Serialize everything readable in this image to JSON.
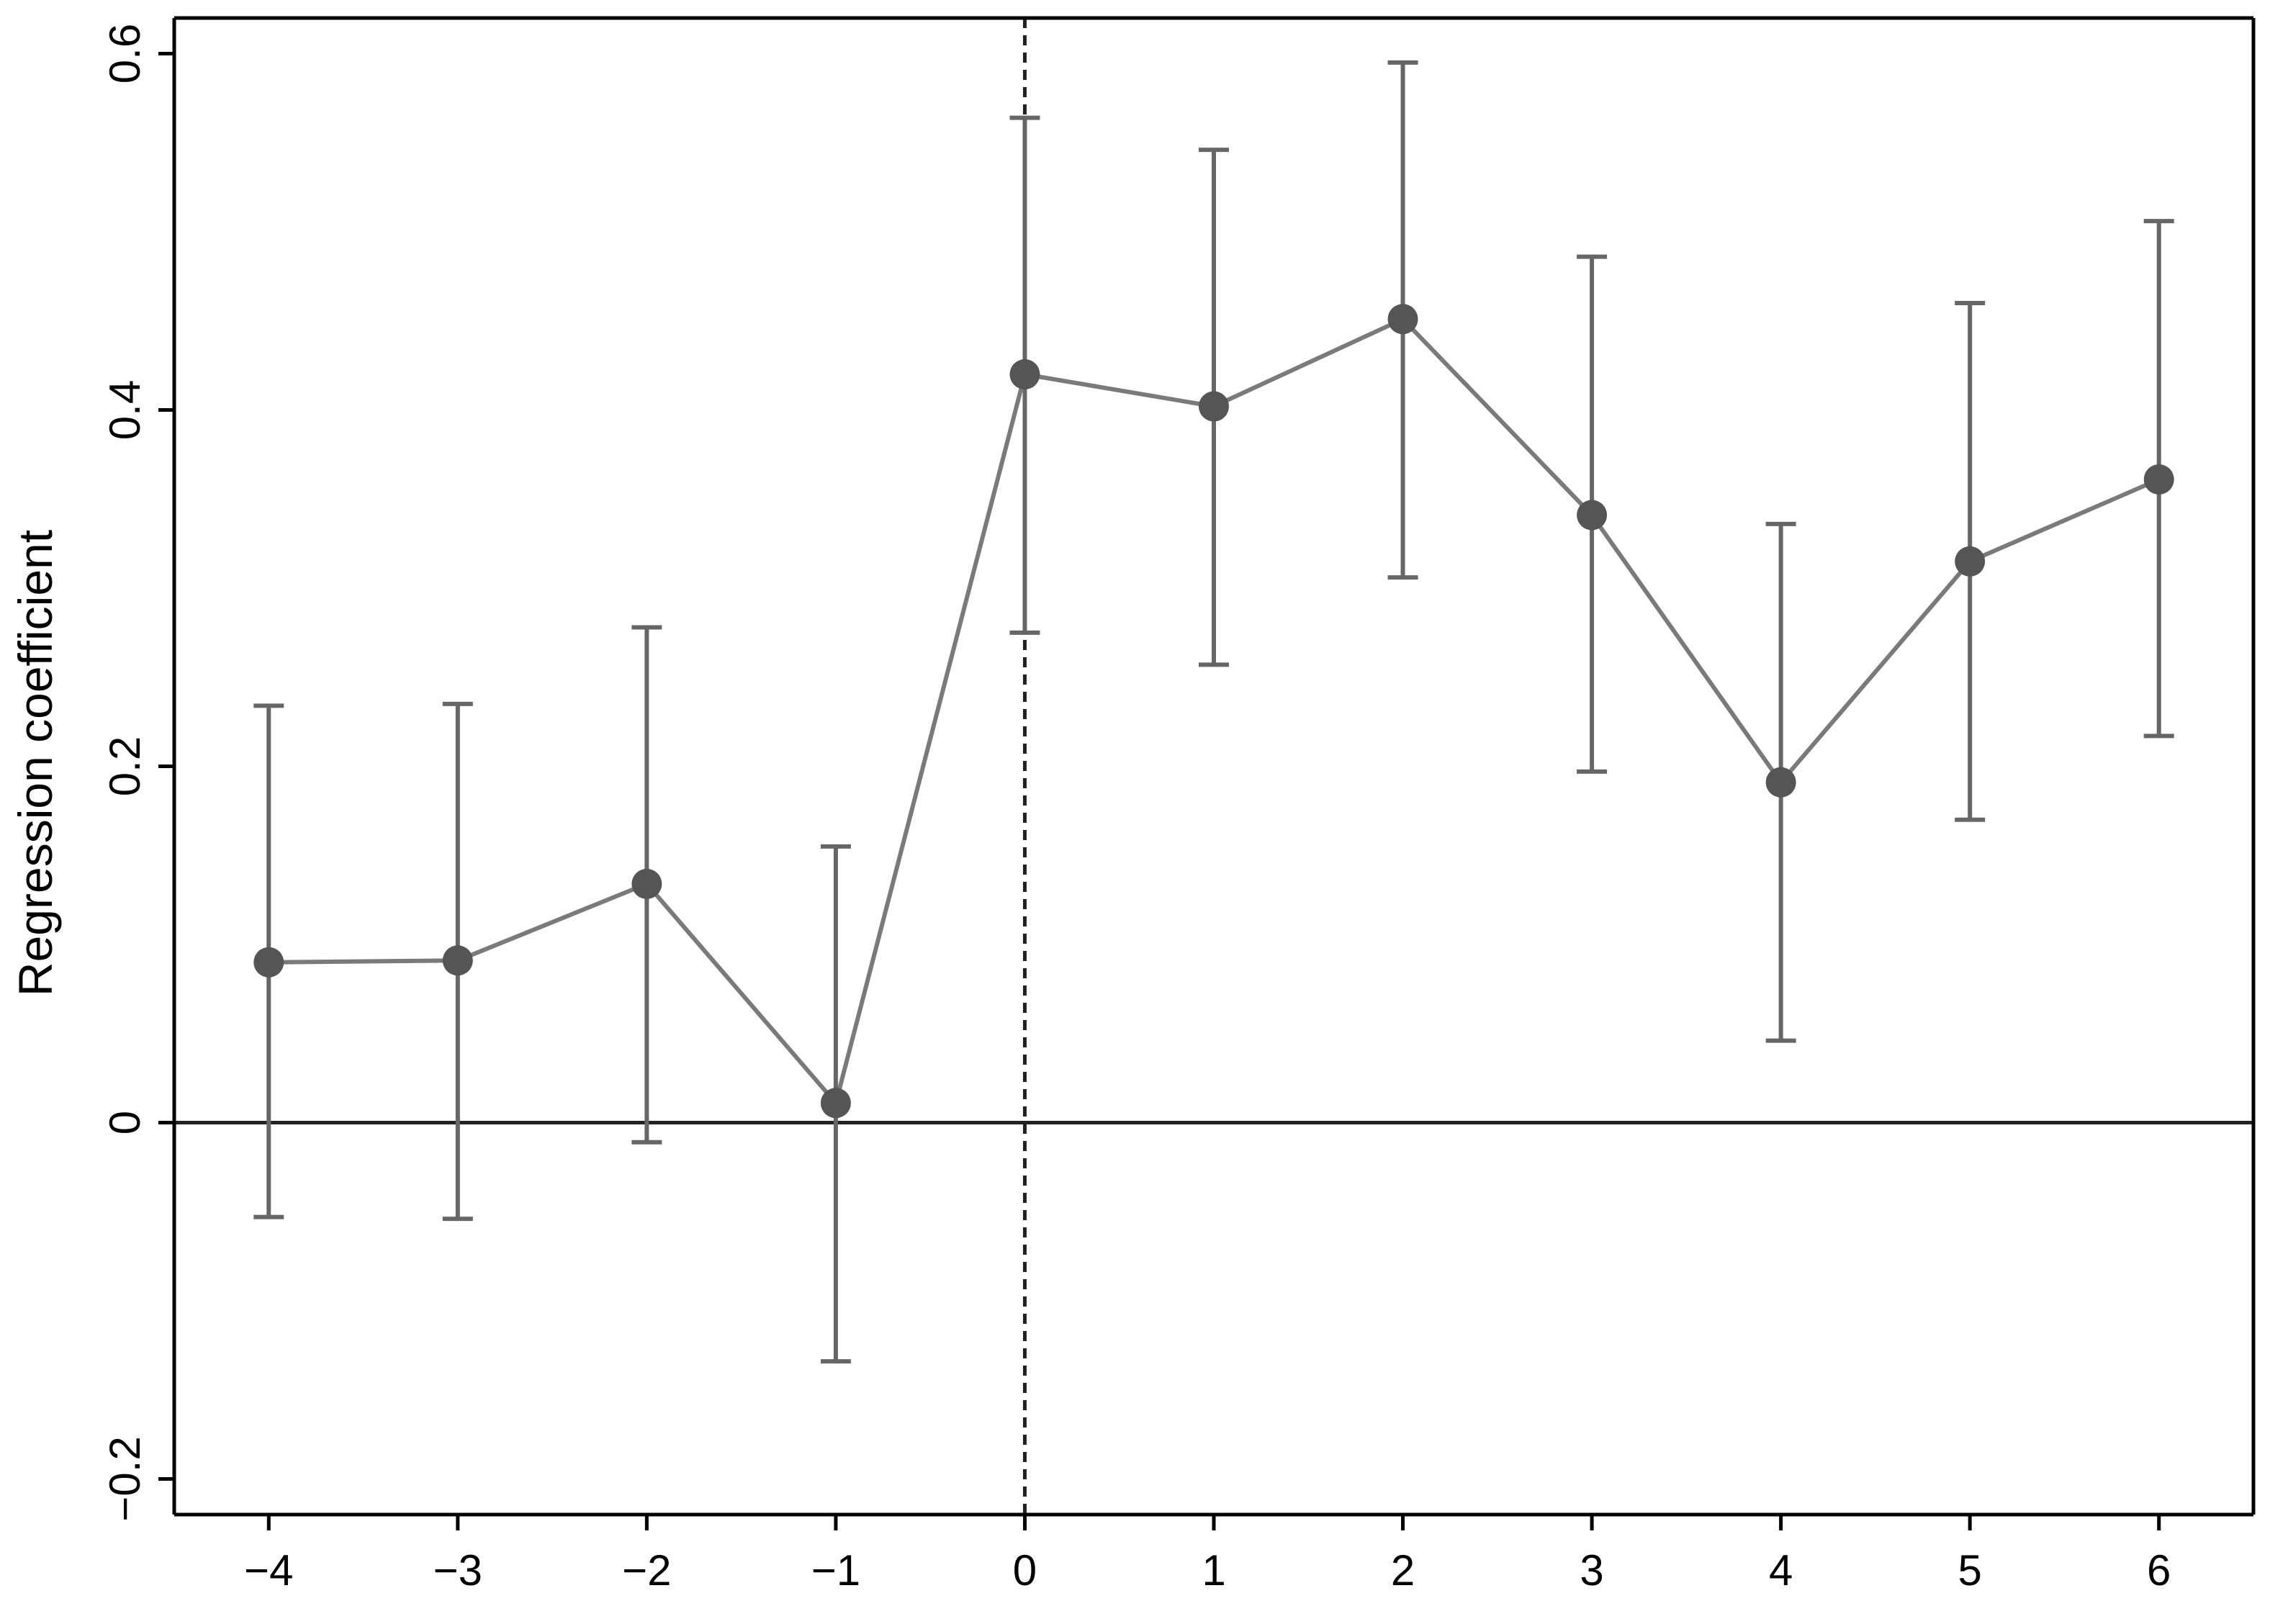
{
  "chart_data": {
    "type": "scatter",
    "title": "",
    "xlabel": "",
    "ylabel": "Regression coefficient",
    "x": [
      -4,
      -3,
      -2,
      -1,
      0,
      1,
      2,
      3,
      4,
      5,
      6
    ],
    "x_tick_labels": [
      "−4",
      "−3",
      "−2",
      "−1",
      "0",
      "1",
      "2",
      "3",
      "4",
      "5",
      "6"
    ],
    "y_ticks": [
      -0.2,
      0,
      0.2,
      0.4,
      0.6
    ],
    "y_tick_labels": [
      "−0.2",
      "0",
      "0.2",
      "0.4",
      "0.6"
    ],
    "xlim": [
      -4.5,
      6.5
    ],
    "ylim": [
      -0.22,
      0.62
    ],
    "series": [
      {
        "values": [
          0.09,
          0.091,
          0.134,
          0.011,
          0.42,
          0.402,
          0.451,
          0.341,
          0.191,
          0.315,
          0.361
        ],
        "ci_lower": [
          -0.053,
          -0.054,
          -0.011,
          -0.134,
          0.275,
          0.257,
          0.306,
          0.197,
          0.046,
          0.17,
          0.217
        ],
        "ci_upper": [
          0.234,
          0.235,
          0.278,
          0.155,
          0.564,
          0.546,
          0.595,
          0.486,
          0.336,
          0.46,
          0.506
        ],
        "connected": true,
        "marker": "filled-circle"
      }
    ],
    "reference_lines": {
      "horizontal_y": 0,
      "vertical_x": 0,
      "vertical_style": "dashed"
    },
    "grid": false,
    "legend": "none",
    "colors": {
      "series_line": "#7a7a7a",
      "error_bars": "#666666",
      "markers": "#555555",
      "axes": "#000000",
      "reference": "#222222"
    }
  }
}
